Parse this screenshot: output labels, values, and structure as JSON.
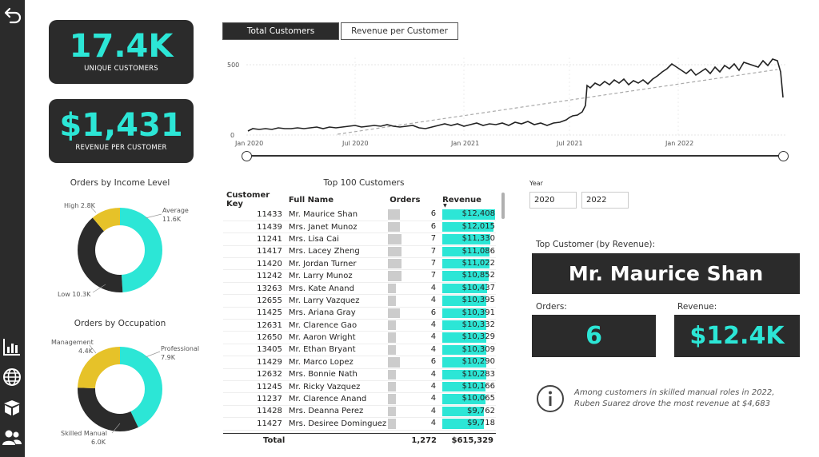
{
  "kpis": {
    "unique_customers": {
      "value": "17.4K",
      "label": "UNIQUE CUSTOMERS"
    },
    "revenue_per_customer": {
      "value": "$1,431",
      "label": "REVENUE PER CUSTOMER"
    }
  },
  "tabs": [
    {
      "label": "Total Customers",
      "active": true
    },
    {
      "label": "Revenue per Customer",
      "active": false
    }
  ],
  "line_chart": {
    "y_ticks": [
      "500",
      "0"
    ],
    "x_ticks": [
      "Jan 2020",
      "Jul 2020",
      "Jan 2021",
      "Jul 2021",
      "Jan 2022"
    ]
  },
  "donut_income": {
    "title": "Orders by Income Level",
    "slices": [
      {
        "name": "Average",
        "value": "11.6K",
        "color": "#2ce6d6"
      },
      {
        "name": "Low",
        "value": "10.3K",
        "color": "#2b2b2b"
      },
      {
        "name": "High",
        "value": "2.8K",
        "color": "#e6c229"
      }
    ],
    "labels": {
      "average": "Average",
      "average_val": "11.6K",
      "low": "Low 10.3K",
      "high": "High 2.8K"
    }
  },
  "donut_occupation": {
    "title": "Orders by Occupation",
    "slices": [
      {
        "name": "Professional",
        "value": "7.9K",
        "color": "#2ce6d6"
      },
      {
        "name": "Skilled Manual",
        "value": "6.0K",
        "color": "#2b2b2b"
      },
      {
        "name": "Management",
        "value": "4.4K",
        "color": "#e6c229"
      }
    ],
    "labels": {
      "professional": "Professional",
      "professional_val": "7.9K",
      "skilled": "Skilled Manual",
      "skilled_val": "6.0K",
      "management": "Management",
      "management_val": "4.4K"
    }
  },
  "table": {
    "title": "Top 100 Customers",
    "headers": {
      "key": "Customer Key",
      "name": "Full Name",
      "orders": "Orders",
      "revenue": "Revenue"
    },
    "rows": [
      {
        "key": "11433",
        "name": "Mr. Maurice Shan",
        "orders": "6",
        "revenue": "$12,408",
        "orders_n": 6,
        "rev_n": 12408
      },
      {
        "key": "11439",
        "name": "Mrs. Janet Munoz",
        "orders": "6",
        "revenue": "$12,015",
        "orders_n": 6,
        "rev_n": 12015
      },
      {
        "key": "11241",
        "name": "Mrs. Lisa Cai",
        "orders": "7",
        "revenue": "$11,330",
        "orders_n": 7,
        "rev_n": 11330
      },
      {
        "key": "11417",
        "name": "Mrs. Lacey Zheng",
        "orders": "7",
        "revenue": "$11,086",
        "orders_n": 7,
        "rev_n": 11086
      },
      {
        "key": "11420",
        "name": "Mr. Jordan Turner",
        "orders": "7",
        "revenue": "$11,022",
        "orders_n": 7,
        "rev_n": 11022
      },
      {
        "key": "11242",
        "name": "Mr. Larry Munoz",
        "orders": "7",
        "revenue": "$10,852",
        "orders_n": 7,
        "rev_n": 10852
      },
      {
        "key": "13263",
        "name": "Mrs. Kate Anand",
        "orders": "4",
        "revenue": "$10,437",
        "orders_n": 4,
        "rev_n": 10437
      },
      {
        "key": "12655",
        "name": "Mr. Larry Vazquez",
        "orders": "4",
        "revenue": "$10,395",
        "orders_n": 4,
        "rev_n": 10395
      },
      {
        "key": "11425",
        "name": "Mrs. Ariana Gray",
        "orders": "6",
        "revenue": "$10,391",
        "orders_n": 6,
        "rev_n": 10391
      },
      {
        "key": "12631",
        "name": "Mr. Clarence Gao",
        "orders": "4",
        "revenue": "$10,332",
        "orders_n": 4,
        "rev_n": 10332
      },
      {
        "key": "12650",
        "name": "Mr. Aaron Wright",
        "orders": "4",
        "revenue": "$10,329",
        "orders_n": 4,
        "rev_n": 10329
      },
      {
        "key": "13405",
        "name": "Mr. Ethan Bryant",
        "orders": "4",
        "revenue": "$10,309",
        "orders_n": 4,
        "rev_n": 10309
      },
      {
        "key": "11429",
        "name": "Mr. Marco Lopez",
        "orders": "6",
        "revenue": "$10,290",
        "orders_n": 6,
        "rev_n": 10290
      },
      {
        "key": "12632",
        "name": "Mrs. Bonnie Nath",
        "orders": "4",
        "revenue": "$10,283",
        "orders_n": 4,
        "rev_n": 10283
      },
      {
        "key": "11245",
        "name": "Mr. Ricky Vazquez",
        "orders": "4",
        "revenue": "$10,166",
        "orders_n": 4,
        "rev_n": 10166
      },
      {
        "key": "11237",
        "name": "Mr. Clarence Anand",
        "orders": "4",
        "revenue": "$10,065",
        "orders_n": 4,
        "rev_n": 10065
      },
      {
        "key": "11428",
        "name": "Mrs. Deanna Perez",
        "orders": "4",
        "revenue": "$9,762",
        "orders_n": 4,
        "rev_n": 9762
      },
      {
        "key": "11427",
        "name": "Mrs. Desiree Dominguez",
        "orders": "4",
        "revenue": "$9,718",
        "orders_n": 4,
        "rev_n": 9718
      }
    ],
    "total": {
      "label": "Total",
      "orders": "1,272",
      "revenue": "$615,329"
    }
  },
  "year_filter": {
    "label": "Year",
    "from": "2020",
    "to": "2022"
  },
  "top_customer": {
    "label": "Top Customer (by Revenue):",
    "name": "Mr. Maurice Shan",
    "orders_label": "Orders:",
    "orders_value": "6",
    "revenue_label": "Revenue:",
    "revenue_value": "$12.4K"
  },
  "insight": "Among customers in skilled manual roles in 2022, Ruben Suarez drove the most revenue at $4,683",
  "colors": {
    "accent": "#2ce6d6",
    "dark": "#2b2b2b",
    "yellow": "#e6c229"
  }
}
